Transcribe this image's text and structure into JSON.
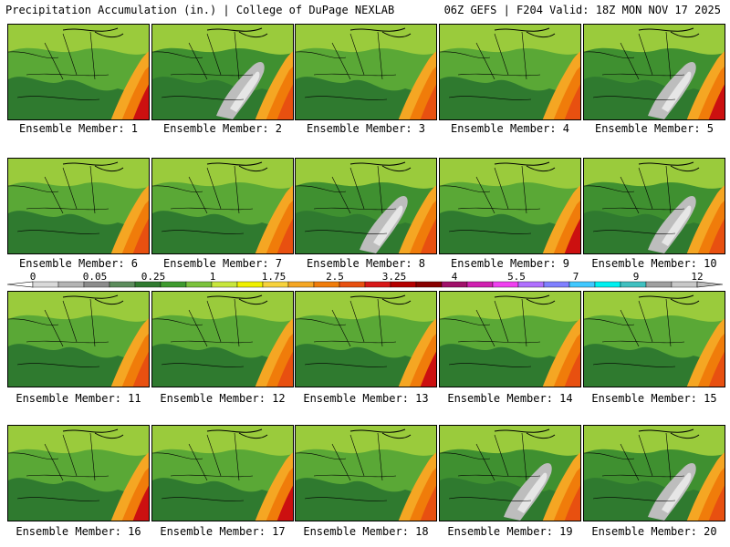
{
  "header": {
    "left": "Precipitation Accumulation (in.) | College of DuPage NEXLAB",
    "right": "06Z GEFS | F204 Valid: 18Z MON NOV 17 2025"
  },
  "members": [
    {
      "label": "Ensemble Member: 1",
      "style": "wet"
    },
    {
      "label": "Ensemble Member: 2",
      "style": "dry"
    },
    {
      "label": "Ensemble Member: 3",
      "style": "wet"
    },
    {
      "label": "Ensemble Member: 4",
      "style": "wet"
    },
    {
      "label": "Ensemble Member: 5",
      "style": "dry"
    },
    {
      "label": "Ensemble Member: 6",
      "style": "wet"
    },
    {
      "label": "Ensemble Member: 7",
      "style": "wet"
    },
    {
      "label": "Ensemble Member: 8",
      "style": "dry"
    },
    {
      "label": "Ensemble Member: 9",
      "style": "wet"
    },
    {
      "label": "Ensemble Member: 10",
      "style": "dry"
    },
    {
      "label": "Ensemble Member: 11",
      "style": "wet"
    },
    {
      "label": "Ensemble Member: 12",
      "style": "wet"
    },
    {
      "label": "Ensemble Member: 13",
      "style": "wet"
    },
    {
      "label": "Ensemble Member: 14",
      "style": "wet"
    },
    {
      "label": "Ensemble Member: 15",
      "style": "wet"
    },
    {
      "label": "Ensemble Member: 16",
      "style": "wet"
    },
    {
      "label": "Ensemble Member: 17",
      "style": "wet"
    },
    {
      "label": "Ensemble Member: 18",
      "style": "wet"
    },
    {
      "label": "Ensemble Member: 19",
      "style": "dry"
    },
    {
      "label": "Ensemble Member: 20",
      "style": "dry"
    }
  ],
  "legend": {
    "ticks": [
      "0",
      "0.05",
      "0.25",
      "1",
      "1.75",
      "2.5",
      "3.25",
      "4",
      "5.5",
      "7",
      "9",
      "12"
    ],
    "colors": [
      "#d9d9d9",
      "#b4b4b4",
      "#8c8c8c",
      "#5c8c5c",
      "#2f7a2f",
      "#3e9a2e",
      "#7cc23c",
      "#c8e63c",
      "#f0f000",
      "#f7d23c",
      "#f5a623",
      "#f07c0a",
      "#e85010",
      "#d81818",
      "#b40000",
      "#880000",
      "#a0106a",
      "#d020b0",
      "#f040f0",
      "#b070ff",
      "#8080ff",
      "#40c8ff",
      "#00f0f0",
      "#40c0c0",
      "#a0a0a0",
      "#c8c8c8"
    ],
    "colors_legend_note": ""
  }
}
